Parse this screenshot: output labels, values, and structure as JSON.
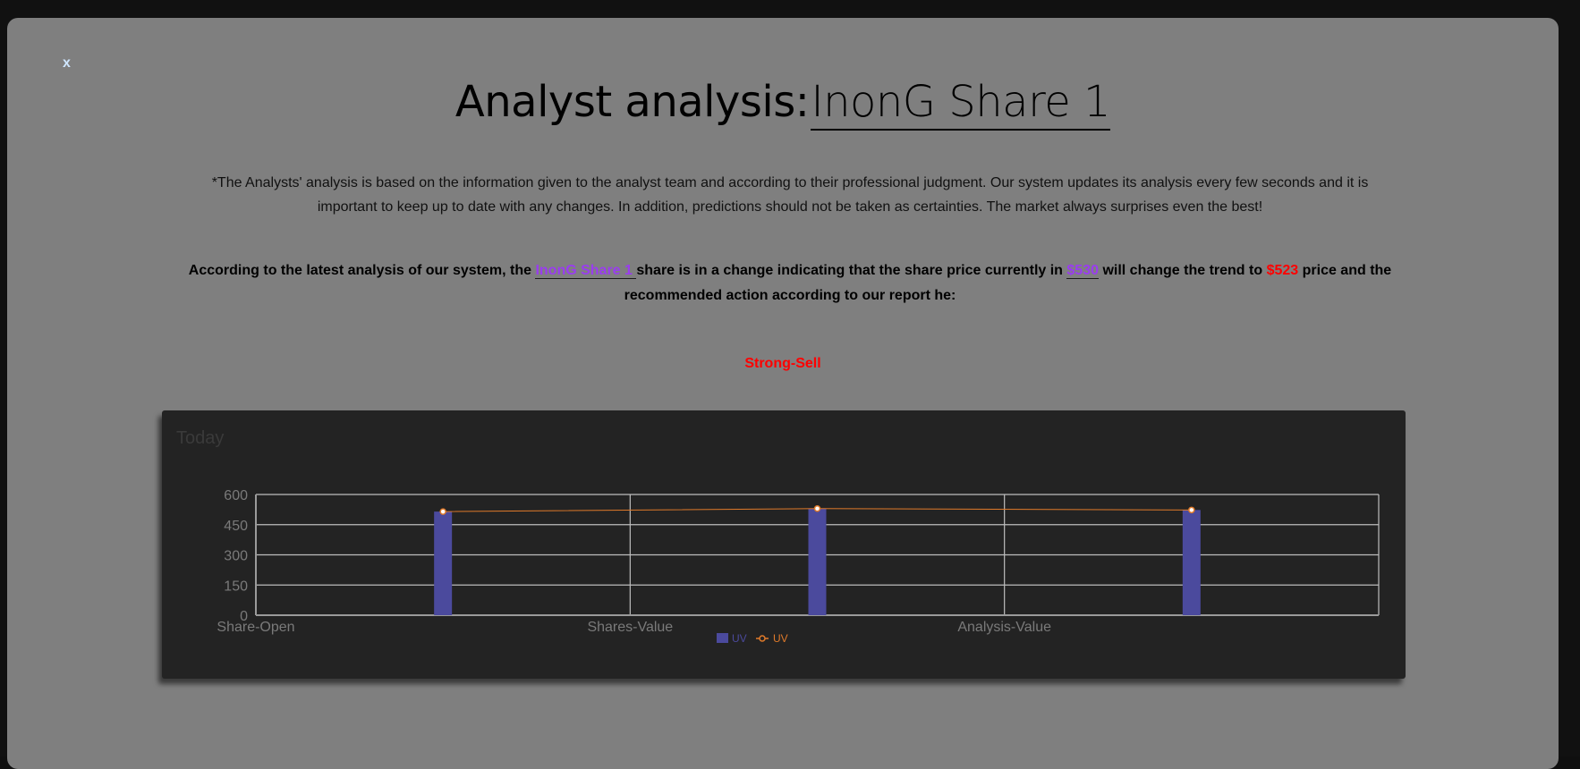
{
  "modal": {
    "close_label": "x",
    "title_prefix": "Analyst analysis:",
    "title_name": "InonG Share 1",
    "disclaimer": "*The Analysts' analysis is based on the information given to the analyst team and according to their professional judgment. Our system updates its analysis every few seconds and it is important to keep up to date with any changes. In addition, predictions should not be taken as certainties. The market always surprises even the best!",
    "analysis": {
      "part1": "According to the latest analysis of our system, the ",
      "share_name": "InonG Share 1 ",
      "part2": " share is in a change indicating that the share price currently in ",
      "current_price": "$530",
      "part3": " will change the trend to ",
      "target_price": "$523",
      "part4": " price and the recommended action according to our report he:"
    },
    "recommendation": "Strong-Sell"
  },
  "colors": {
    "bar": "#4b4a9d",
    "line": "#e07a2a",
    "recommendation": "#ff0000",
    "share_link": "#9a3cf0",
    "modal_bg": "#7f7f7f",
    "chart_bg": "#232323"
  },
  "chart_data": {
    "type": "bar",
    "title": "Today",
    "categories": [
      "Share-Open",
      "Shares-Value",
      "Analysis-Value"
    ],
    "series": [
      {
        "name": "UV",
        "type": "bar",
        "values": [
          515,
          530,
          523
        ]
      },
      {
        "name": "UV",
        "type": "line",
        "values": [
          515,
          530,
          523
        ]
      }
    ],
    "y_ticks": [
      0,
      150,
      300,
      450,
      600
    ],
    "ylim": [
      0,
      600
    ],
    "grid": true,
    "legend_position": "bottom-center"
  }
}
